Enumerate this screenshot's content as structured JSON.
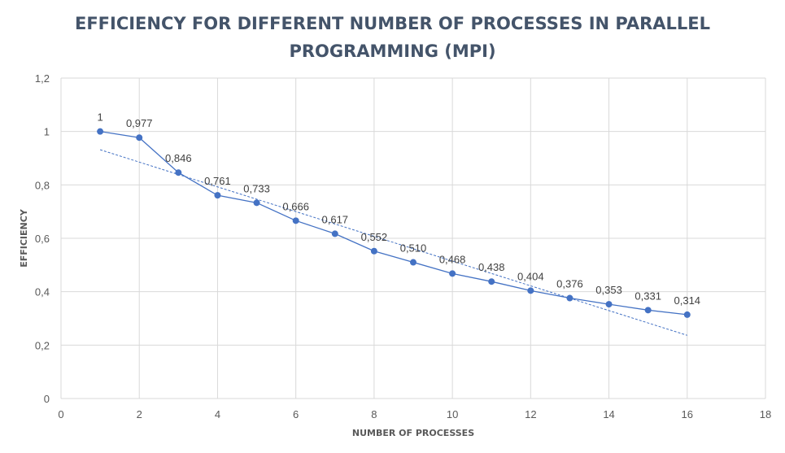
{
  "chart_data": {
    "type": "line",
    "title_lines": [
      "EFFICIENCY FOR DIFFERENT NUMBER OF PROCESSES IN PARALLEL",
      "PROGRAMMING (MPI)"
    ],
    "xlabel": "NUMBER OF PROCESSES",
    "ylabel": "EFFICIENCY",
    "xlim": [
      0,
      18
    ],
    "ylim": [
      0,
      1.2
    ],
    "x_ticks": [
      "0",
      "2",
      "4",
      "6",
      "8",
      "10",
      "12",
      "14",
      "16",
      "18"
    ],
    "y_ticks": [
      "0",
      "0,2",
      "0,4",
      "0,6",
      "0,8",
      "1",
      "1,2"
    ],
    "grid": true,
    "legend": "none",
    "series": [
      {
        "x": [
          1,
          2,
          3,
          4,
          5,
          6,
          7,
          8,
          9,
          10,
          11,
          12,
          13,
          14,
          15,
          16
        ],
        "values": [
          1,
          0.977,
          0.846,
          0.761,
          0.733,
          0.666,
          0.617,
          0.552,
          0.51,
          0.468,
          0.438,
          0.404,
          0.376,
          0.353,
          0.331,
          0.314
        ],
        "data_labels": [
          "1",
          "0,977",
          "0,846",
          "0,761",
          "0,733",
          "0,666",
          "0,617",
          "0,552",
          "0,510",
          "0,468",
          "0,438",
          "0,404",
          "0,376",
          "0,353",
          "0,331",
          "0,314"
        ],
        "color": "#4472c4"
      }
    ],
    "trendline": {
      "type": "linear",
      "style": "dashed",
      "color": "#4472c4",
      "x_range": [
        1,
        16
      ]
    }
  }
}
